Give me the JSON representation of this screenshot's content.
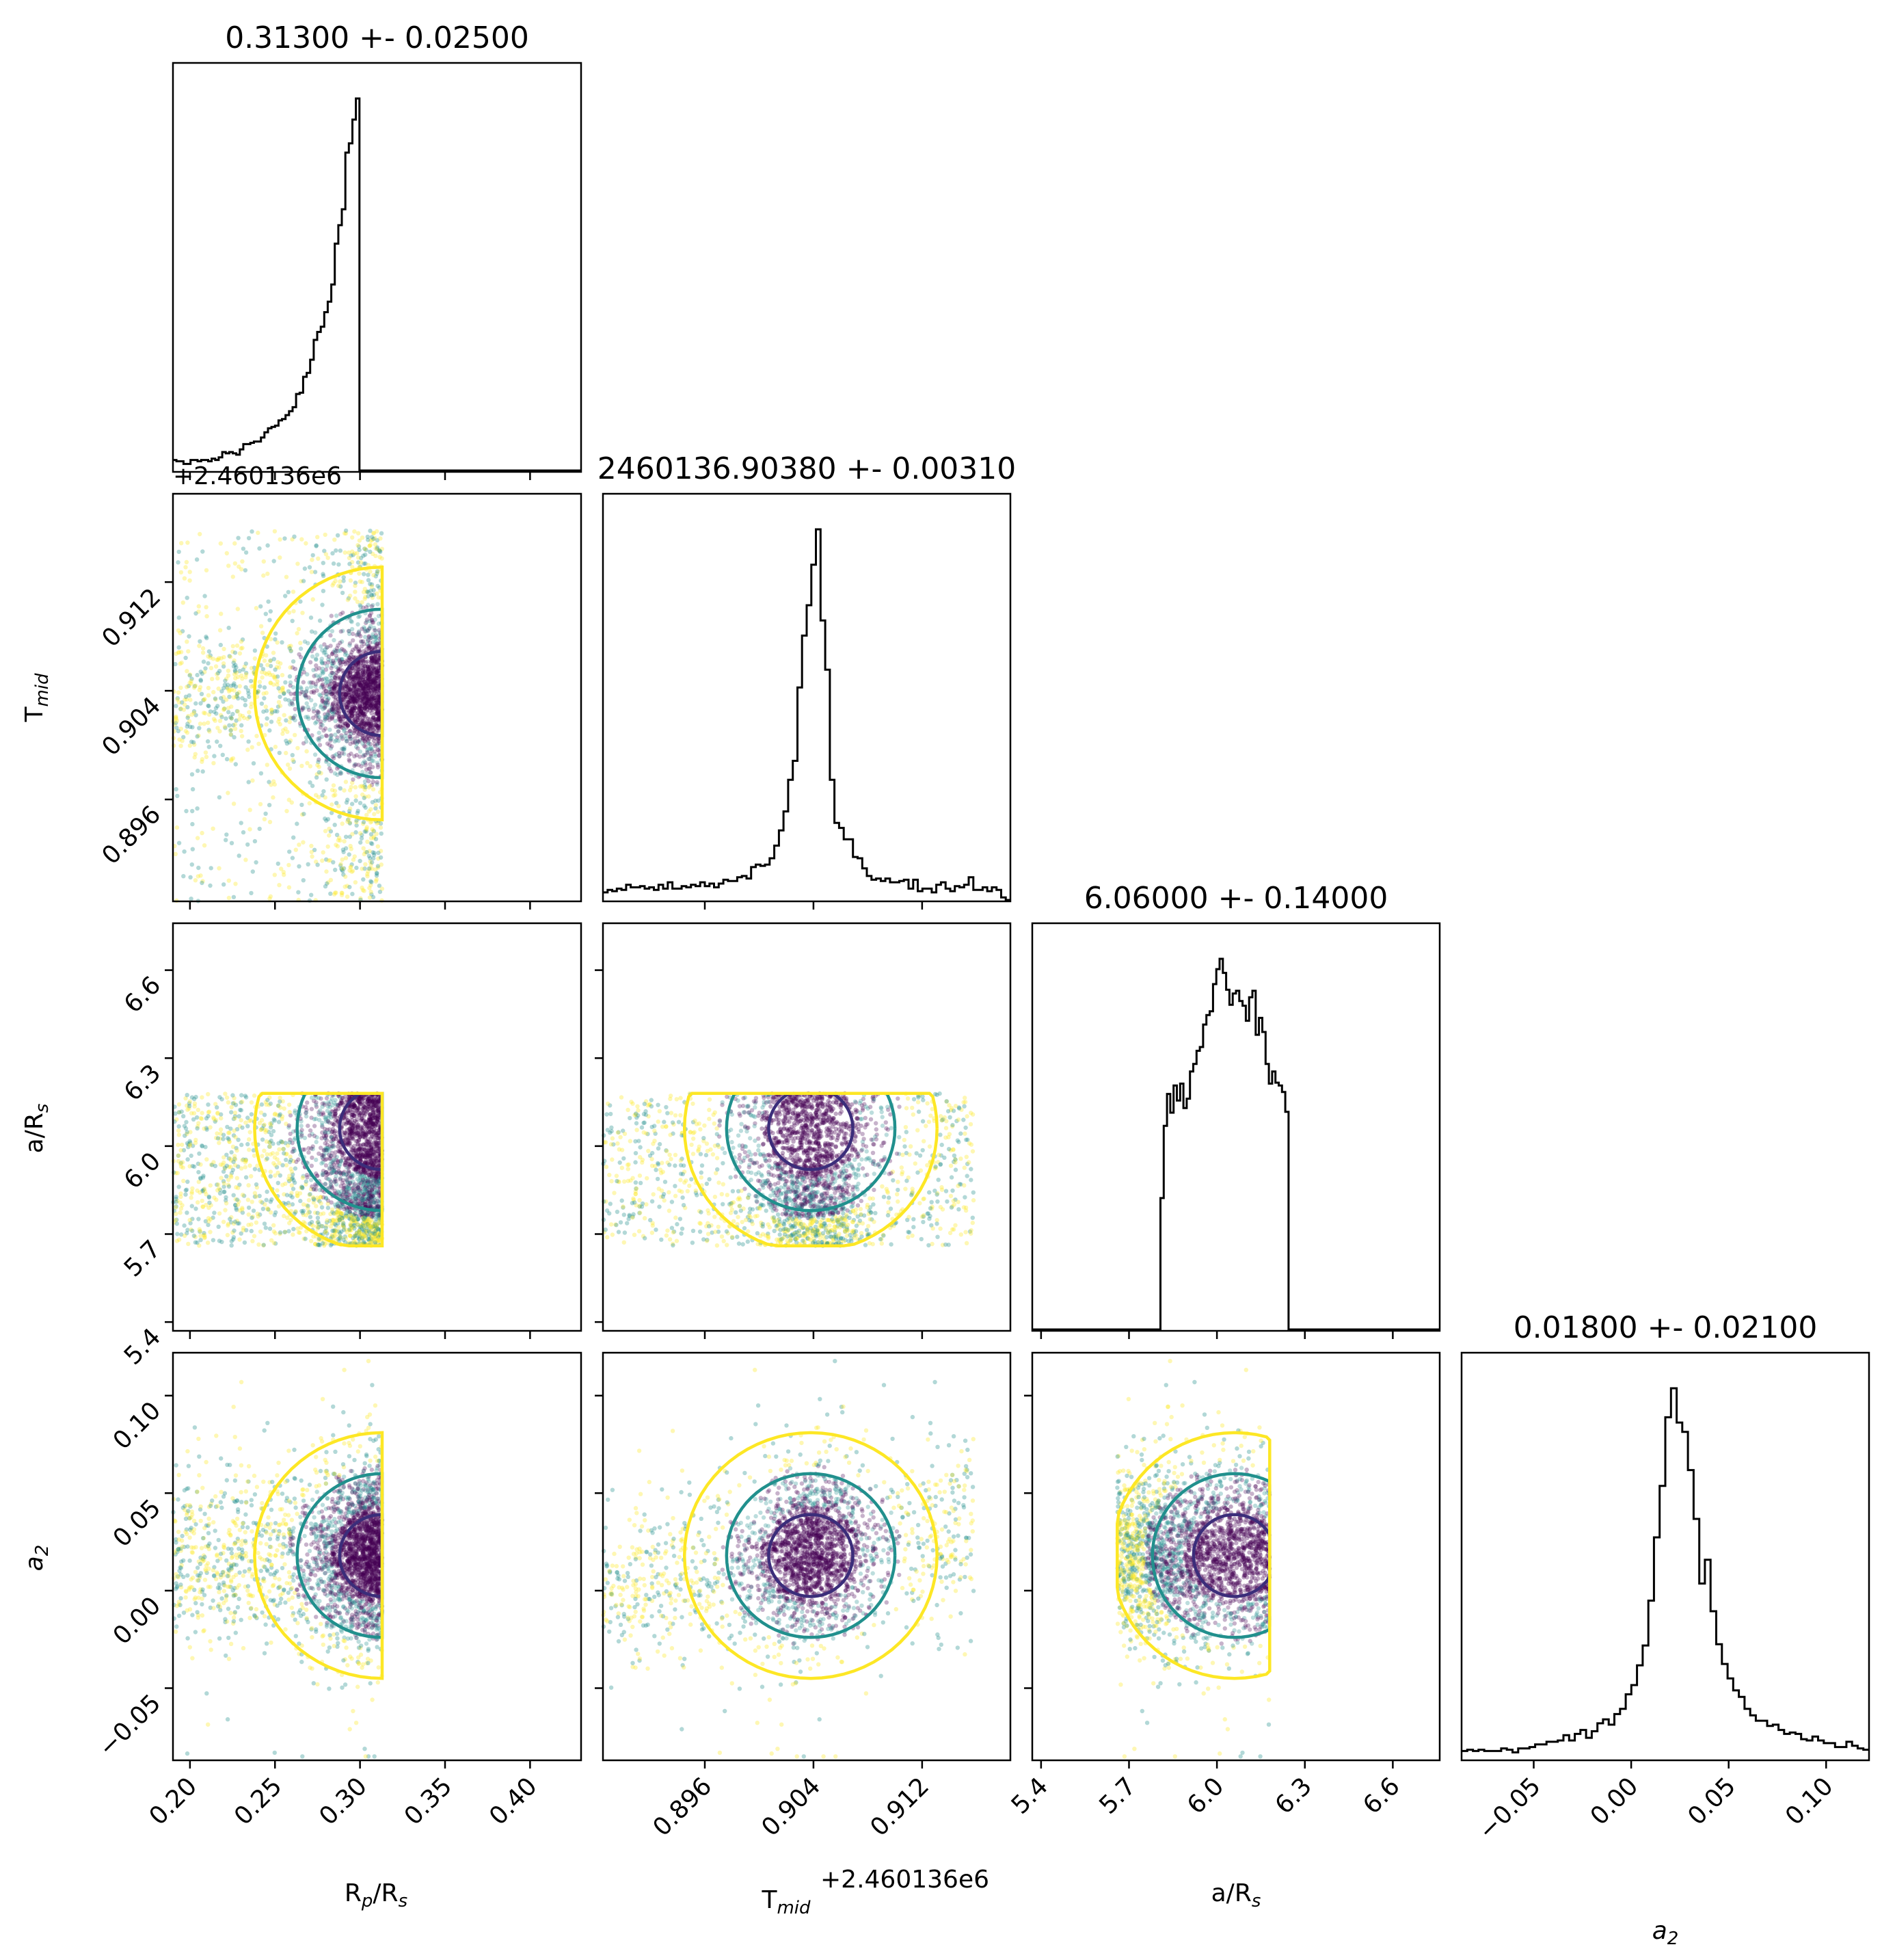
{
  "chart_data": {
    "type": "corner",
    "colors": {
      "hist": "#000000",
      "contour_inner": "#3b2d7a",
      "contour_mid": "#21908d",
      "contour_outer": "#fde725",
      "points_dense": "#440154",
      "points_mid": "#21908d",
      "points_sparse": "#fde725"
    },
    "parameters": [
      {
        "key": "rp",
        "label": "R",
        "label_sub": "p",
        "label_tail": "/R",
        "label_sub2": "s",
        "title": "0.31300 +- 0.02500",
        "range": [
          0.19,
          0.43
        ],
        "ticks": [
          0.2,
          0.25,
          0.3,
          0.35,
          0.4
        ],
        "tick_labels": [
          "0.20",
          "0.25",
          "0.30",
          "0.35",
          "0.40"
        ],
        "median": 0.313,
        "sigma": 0.025
      },
      {
        "key": "tmid",
        "label": "T",
        "label_sub": "mid",
        "label_tail": "",
        "label_sub2": "",
        "title": "2460136.90380 +- 0.00310",
        "offset_text": "+2.460136e6",
        "range": [
          0.8885,
          0.9185
        ],
        "ticks": [
          0.896,
          0.904,
          0.912
        ],
        "tick_labels": [
          "0.896",
          "0.904",
          "0.912"
        ],
        "median": 0.9038,
        "sigma": 0.0031
      },
      {
        "key": "ars",
        "label": "a/R",
        "label_sub": "s",
        "label_tail": "",
        "label_sub2": "",
        "title": "6.06000 +- 0.14000",
        "range": [
          5.37,
          6.76
        ],
        "ticks": [
          5.4,
          5.7,
          6.0,
          6.3,
          6.6
        ],
        "tick_labels": [
          "5.4",
          "5.7",
          "6.0",
          "6.3",
          "6.6"
        ],
        "median": 6.06,
        "sigma": 0.14
      },
      {
        "key": "a2",
        "label": "a",
        "label_sub": "2",
        "label_tail": "",
        "label_sub2": "",
        "label_italic": true,
        "title": "0.01800 +- 0.02100",
        "range": [
          -0.087,
          0.122
        ],
        "ticks": [
          -0.05,
          0.0,
          0.05,
          0.1
        ],
        "tick_labels": [
          "−0.05",
          "0.00",
          "0.05",
          "0.10"
        ],
        "median": 0.018,
        "sigma": 0.021
      }
    ],
    "histograms": {
      "rp": [
        8,
        7,
        7,
        5,
        5,
        8,
        8,
        7,
        8,
        8,
        7,
        9,
        8,
        10,
        14,
        13,
        14,
        13,
        12,
        16,
        20,
        20,
        21,
        22,
        22,
        25,
        29,
        32,
        33,
        34,
        38,
        39,
        42,
        45,
        48,
        58,
        59,
        71,
        74,
        84,
        99,
        105,
        109,
        120,
        128,
        141,
        172,
        186,
        198,
        241,
        248,
        266,
        282,
        0,
        0,
        0,
        0,
        0,
        0,
        0,
        0,
        0,
        0,
        0,
        0,
        0,
        0,
        0,
        0,
        0,
        0,
        0,
        0,
        0,
        0,
        0,
        0,
        0,
        0,
        0,
        0,
        0,
        0,
        0,
        0,
        0,
        0,
        0,
        0,
        0,
        0,
        0,
        0,
        0,
        0,
        0,
        0,
        0,
        0,
        0,
        0,
        0,
        0,
        0,
        0,
        0,
        0,
        0,
        0,
        0,
        0,
        0,
        0,
        0,
        0,
        0
      ],
      "tmid": [
        6,
        8,
        7,
        9,
        8,
        12,
        10,
        10,
        11,
        9,
        10,
        8,
        12,
        9,
        14,
        9,
        9,
        11,
        10,
        12,
        11,
        14,
        11,
        13,
        10,
        13,
        16,
        15,
        15,
        18,
        19,
        17,
        26,
        28,
        27,
        28,
        33,
        43,
        55,
        70,
        95,
        110,
        168,
        209,
        233,
        265,
        293,
        221,
        182,
        95,
        61,
        57,
        48,
        48,
        34,
        33,
        25,
        19,
        16,
        17,
        15,
        17,
        14,
        14,
        15,
        16,
        9,
        16,
        7,
        9,
        9,
        6,
        12,
        14,
        9,
        7,
        11,
        10,
        12,
        18,
        8,
        8,
        10,
        7,
        10,
        8,
        2,
        0
      ],
      "ars": [
        0,
        0,
        0,
        0,
        0,
        0,
        0,
        0,
        0,
        0,
        0,
        0,
        0,
        0,
        0,
        0,
        0,
        0,
        0,
        0,
        0,
        0,
        0,
        0,
        0,
        0,
        0,
        0,
        0,
        0,
        0,
        0,
        0,
        0,
        0,
        0,
        0,
        0,
        0,
        140,
        217,
        251,
        231,
        260,
        244,
        262,
        236,
        246,
        275,
        283,
        297,
        301,
        325,
        335,
        339,
        368,
        384,
        395,
        380,
        362,
        346,
        358,
        361,
        350,
        345,
        329,
        354,
        361,
        314,
        332,
        317,
        283,
        262,
        275,
        263,
        260,
        253,
        232,
        0,
        0,
        0,
        0,
        0,
        0,
        0,
        0,
        0,
        0,
        0,
        0,
        0,
        0,
        0,
        0,
        0,
        0,
        0,
        0,
        0,
        0,
        0,
        0,
        0,
        0,
        0,
        0,
        0,
        0,
        0,
        0,
        0,
        0,
        0,
        0,
        0,
        0,
        0,
        0,
        0,
        0,
        0,
        0,
        0,
        0
      ],
      "a2": [
        6,
        7,
        6,
        7,
        6,
        6,
        6,
        8,
        7,
        5,
        8,
        8,
        9,
        11,
        11,
        13,
        13,
        14,
        18,
        14,
        19,
        22,
        16,
        21,
        27,
        30,
        26,
        34,
        38,
        49,
        56,
        71,
        86,
        120,
        168,
        207,
        259,
        281,
        255,
        248,
        219,
        182,
        133,
        151,
        112,
        87,
        72,
        61,
        52,
        47,
        38,
        33,
        29,
        29,
        25,
        26,
        22,
        19,
        20,
        19,
        15,
        14,
        17,
        14,
        12,
        12,
        9,
        9,
        13,
        10,
        8,
        7
      ]
    },
    "offset_text_rp_tmid": "+2.460136e6",
    "xlabel_tmid_offset": "+2.460136e6"
  }
}
